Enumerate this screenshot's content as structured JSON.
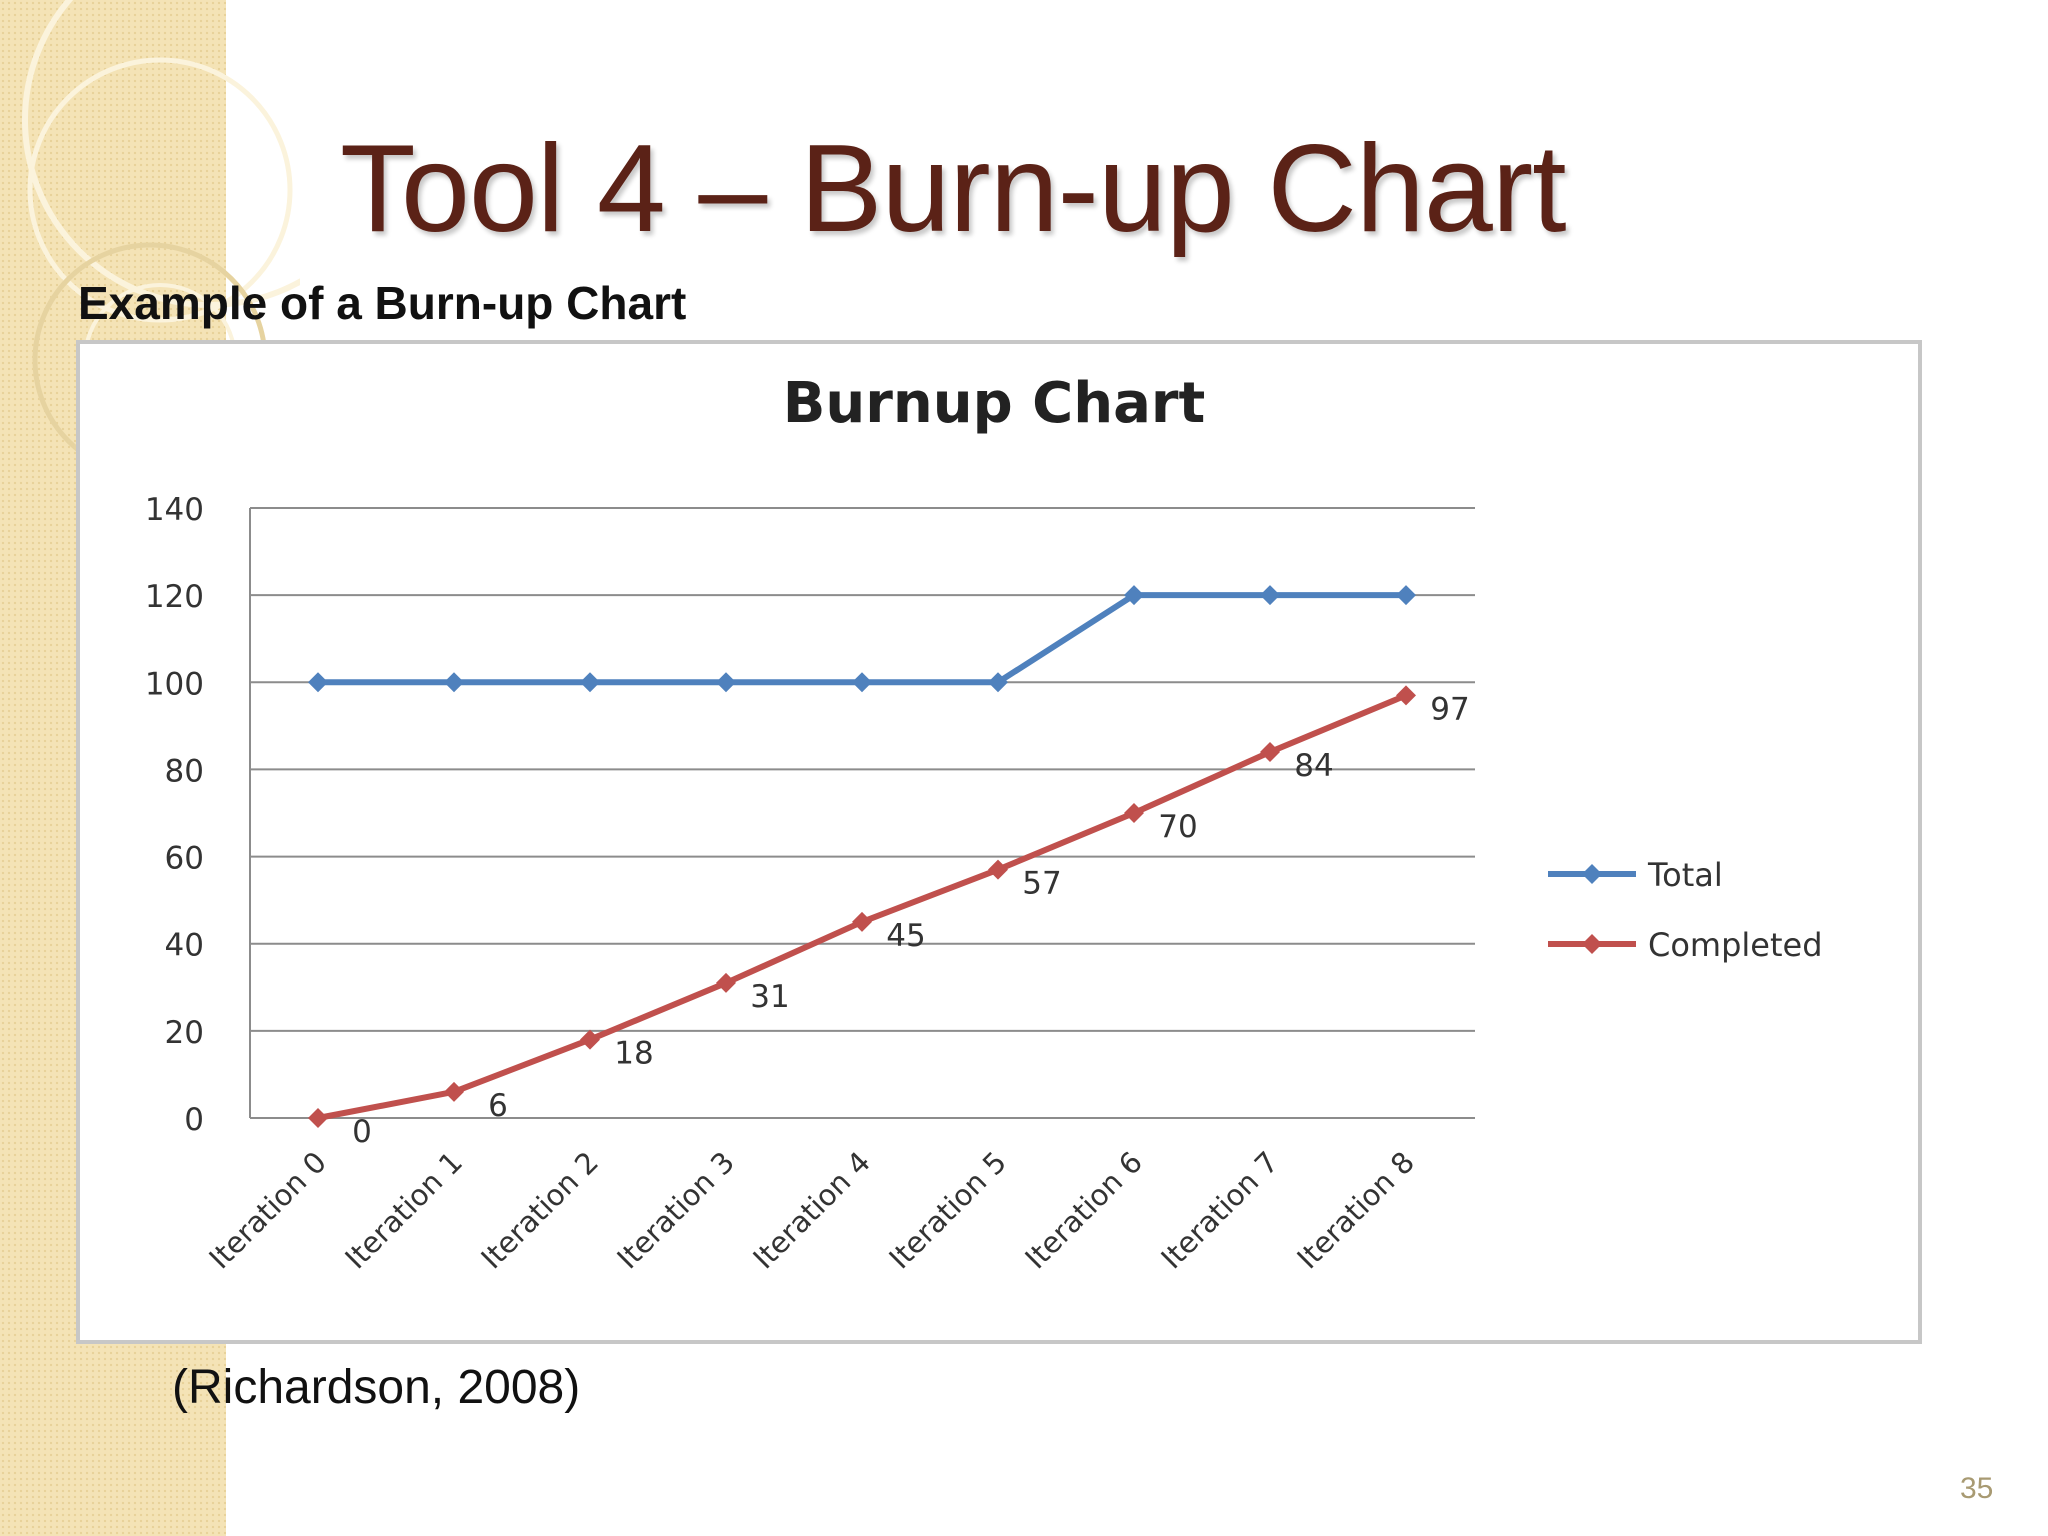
{
  "slide": {
    "title": "Tool 4 – Burn-up Chart",
    "subtitle": "Example of a Burn-up Chart",
    "citation": "(Richardson, 2008)",
    "page_number": "35"
  },
  "colors": {
    "title": "#5b2217",
    "total": "#4f81bd",
    "completed": "#c0504d",
    "side_band": "#f4e3b6"
  },
  "chart_data": {
    "type": "line",
    "title": "Burnup Chart",
    "xlabel": "",
    "ylabel": "",
    "categories": [
      "Iteration 0",
      "Iteration 1",
      "Iteration 2",
      "Iteration 3",
      "Iteration 4",
      "Iteration 5",
      "Iteration 6",
      "Iteration 7",
      "Iteration 8"
    ],
    "yticks": [
      "0",
      "20",
      "40",
      "60",
      "80",
      "100",
      "120",
      "140"
    ],
    "ylim": [
      0,
      140
    ],
    "grid": true,
    "legend_position": "right",
    "series": [
      {
        "name": "Total",
        "color": "#4f81bd",
        "values": [
          100,
          100,
          100,
          100,
          100,
          100,
          120,
          120,
          120
        ],
        "data_labels": false
      },
      {
        "name": "Completed",
        "color": "#c0504d",
        "values": [
          0,
          6,
          18,
          31,
          45,
          57,
          70,
          84,
          97
        ],
        "data_labels": true
      }
    ]
  }
}
